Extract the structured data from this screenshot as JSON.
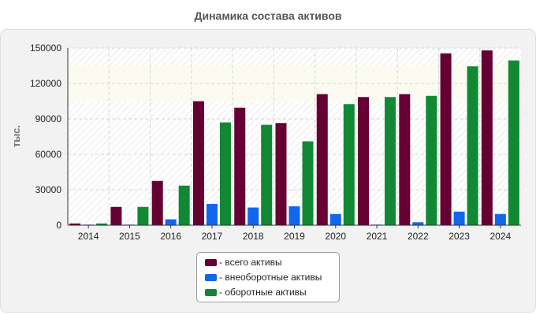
{
  "chart_data": {
    "type": "bar",
    "title": "Динамика состава активов",
    "xlabel": "",
    "ylabel": "тыс.",
    "ylim": [
      0,
      150000
    ],
    "yticks": [
      "0",
      "30000",
      "60000",
      "90000",
      "120000",
      "150000"
    ],
    "categories": [
      "2014",
      "2015",
      "2016",
      "2017",
      "2018",
      "2019",
      "2020",
      "2021",
      "2022",
      "2023",
      "2024"
    ],
    "series": [
      {
        "name": "- всего активы",
        "color": "#660033",
        "values": [
          1500,
          15500,
          37500,
          105000,
          99500,
          86500,
          111000,
          108500,
          111000,
          145500,
          148000
        ]
      },
      {
        "name": "- внеоборотные активы",
        "color": "#1166ee",
        "values": [
          500,
          500,
          5000,
          18000,
          15000,
          16000,
          9500,
          500,
          2500,
          11500,
          9500
        ]
      },
      {
        "name": "- оборотные активы",
        "color": "#118833",
        "values": [
          1500,
          15500,
          33500,
          87000,
          85000,
          71000,
          102500,
          108500,
          109500,
          134500,
          139500
        ]
      }
    ],
    "grid": true,
    "legend_position": "bottom-center"
  }
}
